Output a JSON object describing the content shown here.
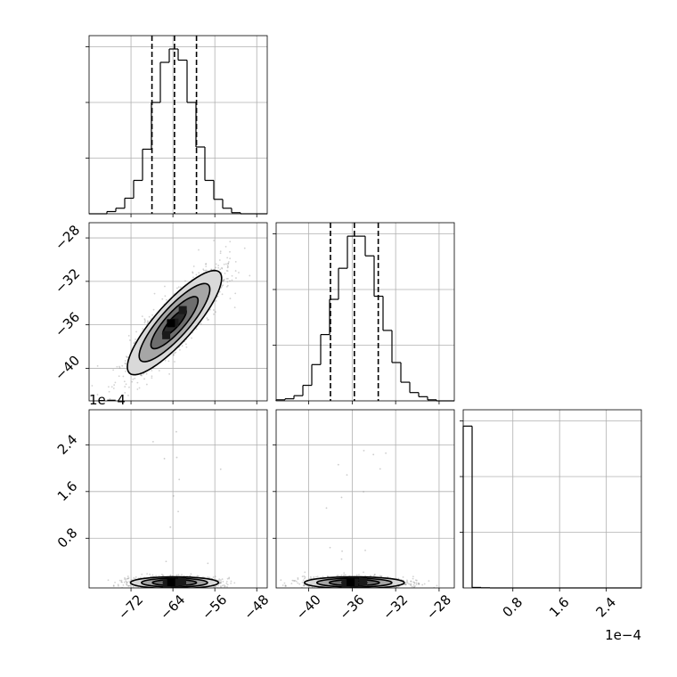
{
  "chart_data": {
    "type": "corner",
    "parameters": [
      {
        "lim": [
          -80,
          -46
        ],
        "ticks": [
          -72,
          -64,
          -56,
          -48
        ],
        "tick_labels": [
          "−72",
          "−64",
          "−56",
          "−48"
        ],
        "offset_text": ""
      },
      {
        "lim": [
          -43,
          -26.6
        ],
        "ticks": [
          -40,
          -36,
          -32,
          -28
        ],
        "tick_labels": [
          "−40",
          "−36",
          "−32",
          "−28"
        ],
        "offset_text": ""
      },
      {
        "lim": [
          -0.05,
          3.0
        ],
        "ticks": [
          0.8,
          1.6,
          2.4
        ],
        "tick_labels": [
          "0.8",
          "1.6",
          "2.4"
        ],
        "offset_text": "1e−4"
      }
    ],
    "marginals": [
      {
        "parameter": 0,
        "bin_edges": [
          -80.0,
          -78.3,
          -76.6,
          -74.9,
          -73.2,
          -71.5,
          -69.8,
          -68.1,
          -66.4,
          -64.7,
          -63.0,
          -61.3,
          -59.6,
          -57.9,
          -56.2,
          -54.5,
          -52.8,
          -51.1,
          -49.4,
          -47.7,
          -46.0
        ],
        "counts": [
          0,
          0,
          2,
          5,
          14,
          30,
          58,
          100,
          136,
          148,
          138,
          100,
          60,
          30,
          13,
          5,
          1,
          0,
          0,
          0
        ],
        "quantiles": [
          -68.0,
          -63.7,
          -59.5
        ],
        "ylim": [
          0,
          160
        ]
      },
      {
        "parameter": 1,
        "bin_edges": [
          -43.0,
          -42.18,
          -41.36,
          -40.54,
          -39.72,
          -38.9,
          -38.08,
          -37.26,
          -36.44,
          -35.62,
          -34.8,
          -33.98,
          -33.16,
          -32.34,
          -31.52,
          -30.7,
          -29.88,
          -29.06,
          -28.24,
          -27.42,
          -26.6
        ],
        "counts": [
          1,
          2,
          5,
          15,
          35,
          64,
          98,
          128,
          159,
          159,
          140,
          101,
          68,
          37,
          18,
          8,
          4,
          1,
          0,
          0
        ],
        "quantiles": [
          -38.0,
          -35.8,
          -33.6
        ],
        "ylim": [
          0,
          172
        ]
      },
      {
        "parameter": 2,
        "bin_edges": [
          -0.05,
          0.1025,
          0.255,
          0.4075,
          0.56,
          0.7125,
          0.865,
          1.0175,
          1.17,
          1.3225,
          1.475,
          1.6275,
          1.78,
          1.9325,
          2.085,
          2.2375,
          2.39,
          2.5425,
          2.695,
          2.8475,
          3.0
        ],
        "counts": [
          990,
          3,
          1,
          0,
          0,
          0,
          0,
          0,
          0,
          0,
          0,
          0,
          0,
          0,
          0,
          0,
          0,
          0,
          0,
          0
        ],
        "quantiles": [],
        "ylim": [
          0,
          1090
        ]
      }
    ],
    "joint": [
      {
        "x_param": 0,
        "y_param": 1,
        "center": [
          -63.7,
          -35.8
        ],
        "sigma": [
          4.5,
          2.4
        ],
        "rho": 0.85,
        "contour_levels_sigma": [
          0.5,
          1.0,
          1.5,
          2.0
        ]
      },
      {
        "x_param": 0,
        "y_param": 2,
        "center": [
          -63.7,
          0.04
        ],
        "sigma": [
          4.2,
          0.05
        ],
        "rho": 0.0,
        "contour_levels_sigma": [
          0.5,
          1.0,
          1.5,
          2.0
        ]
      },
      {
        "x_param": 1,
        "y_param": 2,
        "center": [
          -35.8,
          0.04
        ],
        "sigma": [
          2.3,
          0.05
        ],
        "rho": 0.0,
        "contour_levels_sigma": [
          0.5,
          1.0,
          1.5,
          2.0
        ]
      }
    ],
    "grid": true,
    "colors": {
      "hist": "#000000",
      "quantile": "#000000",
      "contour": "#000000",
      "sample": "#7f7f7f",
      "grid": "#b0b0b0"
    }
  }
}
